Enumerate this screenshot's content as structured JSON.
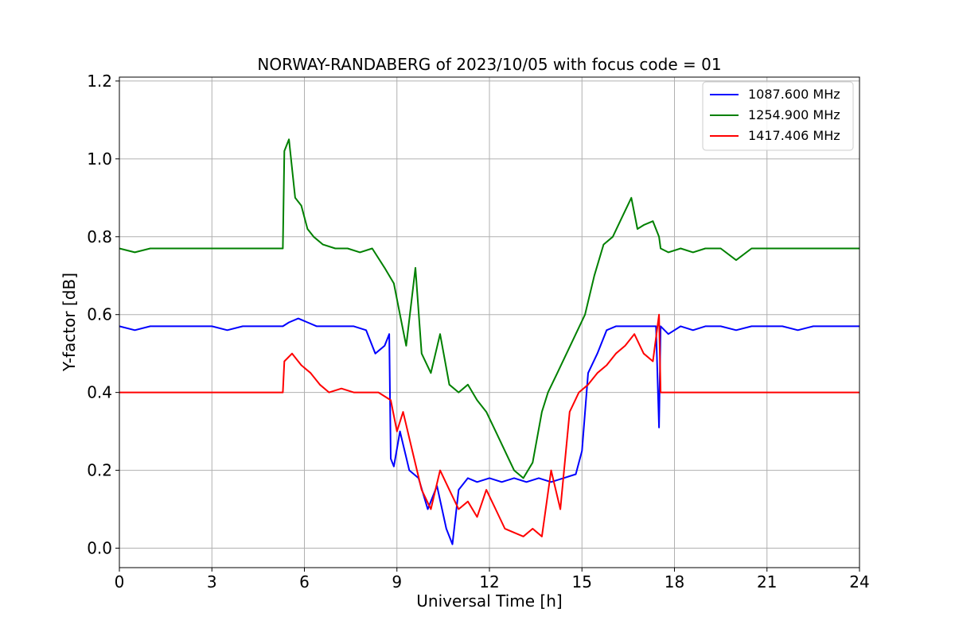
{
  "chart_data": {
    "type": "line",
    "title": "NORWAY-RANDABERG of 2023/10/05 with focus code = 01",
    "xlabel": "Universal Time [h]",
    "ylabel": "Y-factor [dB]",
    "xlim": [
      0,
      24
    ],
    "ylim": [
      -0.05,
      1.21
    ],
    "xticks": [
      0,
      3,
      6,
      9,
      12,
      15,
      18,
      21,
      24
    ],
    "xtick_labels": [
      "0",
      "3",
      "6",
      "9",
      "12",
      "15",
      "18",
      "21",
      "24"
    ],
    "yticks": [
      0.0,
      0.2,
      0.4,
      0.6,
      0.8,
      1.0,
      1.2
    ],
    "ytick_labels": [
      "0.0",
      "0.2",
      "0.4",
      "0.6",
      "0.8",
      "1.0",
      "1.2"
    ],
    "grid": true,
    "legend_position": "top-right",
    "series": [
      {
        "name": "1087.600 MHz",
        "color": "#0000ff",
        "x": [
          0.0,
          0.5,
          1.0,
          1.5,
          2.0,
          2.5,
          3.0,
          3.5,
          4.0,
          4.5,
          5.0,
          5.3,
          5.5,
          5.8,
          6.1,
          6.4,
          6.8,
          7.2,
          7.6,
          8.0,
          8.3,
          8.6,
          8.75,
          8.8,
          8.9,
          9.1,
          9.4,
          9.7,
          10.0,
          10.3,
          10.6,
          10.8,
          11.0,
          11.3,
          11.6,
          12.0,
          12.4,
          12.8,
          13.2,
          13.6,
          14.0,
          14.4,
          14.8,
          15.0,
          15.2,
          15.5,
          15.8,
          16.1,
          16.5,
          17.0,
          17.4,
          17.5,
          17.55,
          17.8,
          18.2,
          18.6,
          19.0,
          19.5,
          20.0,
          20.5,
          21.0,
          21.5,
          22.0,
          22.5,
          23.0,
          23.5,
          24.0
        ],
        "y": [
          0.57,
          0.56,
          0.57,
          0.57,
          0.57,
          0.57,
          0.57,
          0.56,
          0.57,
          0.57,
          0.57,
          0.57,
          0.58,
          0.59,
          0.58,
          0.57,
          0.57,
          0.57,
          0.57,
          0.56,
          0.5,
          0.52,
          0.55,
          0.23,
          0.21,
          0.3,
          0.2,
          0.18,
          0.1,
          0.16,
          0.05,
          0.01,
          0.15,
          0.18,
          0.17,
          0.18,
          0.17,
          0.18,
          0.17,
          0.18,
          0.17,
          0.18,
          0.19,
          0.25,
          0.45,
          0.5,
          0.56,
          0.57,
          0.57,
          0.57,
          0.57,
          0.31,
          0.57,
          0.55,
          0.57,
          0.56,
          0.57,
          0.57,
          0.56,
          0.57,
          0.57,
          0.57,
          0.56,
          0.57,
          0.57,
          0.57,
          0.57
        ]
      },
      {
        "name": "1254.900 MHz",
        "color": "#008000",
        "x": [
          0.0,
          0.5,
          1.0,
          1.5,
          2.0,
          2.5,
          3.0,
          3.5,
          4.0,
          4.5,
          5.0,
          5.3,
          5.35,
          5.5,
          5.7,
          5.9,
          6.1,
          6.3,
          6.6,
          7.0,
          7.4,
          7.8,
          8.2,
          8.6,
          8.9,
          9.1,
          9.3,
          9.6,
          9.8,
          10.1,
          10.4,
          10.7,
          11.0,
          11.3,
          11.6,
          11.9,
          12.2,
          12.5,
          12.8,
          13.1,
          13.4,
          13.7,
          13.9,
          14.2,
          14.5,
          14.8,
          15.1,
          15.4,
          15.7,
          16.0,
          16.3,
          16.6,
          16.8,
          17.0,
          17.3,
          17.5,
          17.55,
          17.8,
          18.2,
          18.6,
          19.0,
          19.5,
          20.0,
          20.5,
          21.0,
          21.5,
          22.0,
          22.5,
          23.0,
          23.5,
          24.0
        ],
        "y": [
          0.77,
          0.76,
          0.77,
          0.77,
          0.77,
          0.77,
          0.77,
          0.77,
          0.77,
          0.77,
          0.77,
          0.77,
          1.02,
          1.05,
          0.9,
          0.88,
          0.82,
          0.8,
          0.78,
          0.77,
          0.77,
          0.76,
          0.77,
          0.72,
          0.68,
          0.6,
          0.52,
          0.72,
          0.5,
          0.45,
          0.55,
          0.42,
          0.4,
          0.42,
          0.38,
          0.35,
          0.3,
          0.25,
          0.2,
          0.18,
          0.22,
          0.35,
          0.4,
          0.45,
          0.5,
          0.55,
          0.6,
          0.7,
          0.78,
          0.8,
          0.85,
          0.9,
          0.82,
          0.83,
          0.84,
          0.8,
          0.77,
          0.76,
          0.77,
          0.76,
          0.77,
          0.77,
          0.74,
          0.77,
          0.77,
          0.77,
          0.77,
          0.77,
          0.77,
          0.77,
          0.77
        ]
      },
      {
        "name": "1417.406 MHz",
        "color": "#ff0000",
        "x": [
          0.0,
          0.5,
          1.0,
          1.5,
          2.0,
          2.5,
          3.0,
          3.5,
          4.0,
          4.5,
          5.0,
          5.3,
          5.35,
          5.6,
          5.9,
          6.2,
          6.5,
          6.8,
          7.2,
          7.6,
          8.0,
          8.4,
          8.8,
          9.0,
          9.2,
          9.5,
          9.8,
          10.1,
          10.4,
          10.7,
          11.0,
          11.3,
          11.6,
          11.9,
          12.2,
          12.5,
          12.8,
          13.1,
          13.4,
          13.7,
          14.0,
          14.3,
          14.6,
          14.9,
          15.2,
          15.5,
          15.8,
          16.1,
          16.4,
          16.7,
          17.0,
          17.3,
          17.5,
          17.55,
          17.8,
          18.2,
          18.6,
          19.0,
          19.5,
          20.0,
          20.5,
          21.0,
          21.5,
          22.0,
          22.5,
          23.0,
          23.5,
          24.0
        ],
        "y": [
          0.4,
          0.4,
          0.4,
          0.4,
          0.4,
          0.4,
          0.4,
          0.4,
          0.4,
          0.4,
          0.4,
          0.4,
          0.48,
          0.5,
          0.47,
          0.45,
          0.42,
          0.4,
          0.41,
          0.4,
          0.4,
          0.4,
          0.38,
          0.3,
          0.35,
          0.25,
          0.15,
          0.1,
          0.2,
          0.15,
          0.1,
          0.12,
          0.08,
          0.15,
          0.1,
          0.05,
          0.04,
          0.03,
          0.05,
          0.03,
          0.2,
          0.1,
          0.35,
          0.4,
          0.42,
          0.45,
          0.47,
          0.5,
          0.52,
          0.55,
          0.5,
          0.48,
          0.6,
          0.4,
          0.4,
          0.4,
          0.4,
          0.4,
          0.4,
          0.4,
          0.4,
          0.4,
          0.4,
          0.4,
          0.4,
          0.4,
          0.4,
          0.4
        ]
      }
    ]
  }
}
